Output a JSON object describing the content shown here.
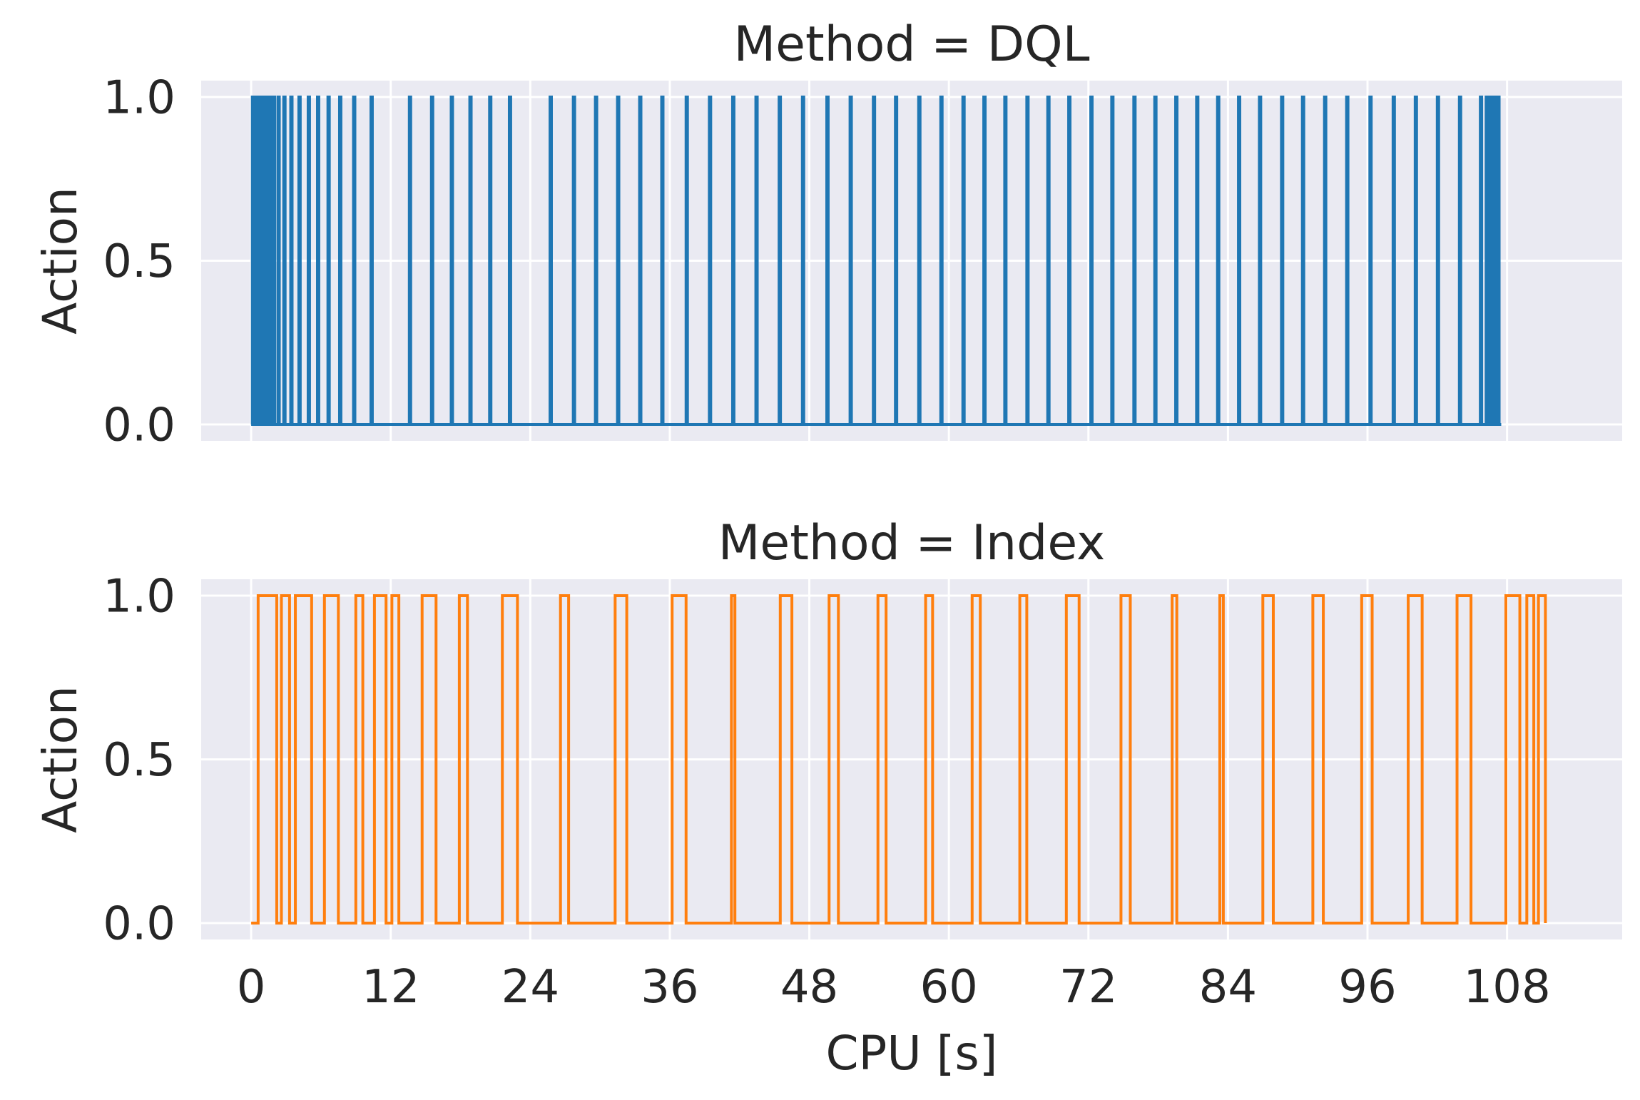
{
  "chart_data": [
    {
      "type": "line",
      "step": "post",
      "title": "Method = DQL",
      "xlabel": "",
      "ylabel": "Action",
      "xlim": [
        -4.3,
        117.9
      ],
      "ylim": [
        -0.05,
        1.05
      ],
      "xticks": [
        0,
        12,
        24,
        36,
        48,
        60,
        72,
        84,
        96,
        108
      ],
      "xtick_labels": [
        "0",
        "12",
        "24",
        "36",
        "48",
        "60",
        "72",
        "84",
        "96",
        "108"
      ],
      "show_xtick_labels": false,
      "yticks": [
        0.0,
        0.5,
        1.0
      ],
      "ytick_labels": [
        "0.0",
        "0.5",
        "1.0"
      ],
      "grid": true,
      "color": "#1f77b4",
      "x_end": 107.5,
      "pulse_width": 0.12,
      "pulse_starts": [
        0.1,
        0.25,
        0.4,
        0.55,
        0.7,
        0.85,
        1.0,
        1.15,
        1.3,
        1.45,
        1.6,
        1.75,
        1.9,
        2.3,
        2.8,
        3.4,
        4.1,
        4.9,
        5.7,
        6.6,
        7.6,
        8.8,
        10.3,
        13.6,
        15.5,
        17.2,
        18.8,
        20.5,
        22.2,
        25.7,
        27.7,
        29.6,
        31.5,
        33.4,
        35.3,
        37.4,
        39.4,
        41.4,
        43.4,
        45.4,
        47.4,
        49.5,
        51.5,
        53.5,
        55.4,
        57.4,
        59.3,
        61.2,
        63.0,
        64.8,
        66.7,
        68.5,
        70.3,
        72.2,
        74.0,
        75.9,
        77.7,
        79.5,
        81.3,
        83.1,
        84.9,
        86.7,
        88.6,
        90.4,
        92.3,
        94.2,
        96.2,
        98.2,
        100.1,
        102.0,
        103.9,
        105.7,
        106.2,
        106.4,
        106.6,
        106.8,
        107.0,
        107.2
      ]
    },
    {
      "type": "line",
      "step": "post",
      "title": "Method = Index",
      "xlabel": "CPU [s]",
      "ylabel": "Action",
      "xlim": [
        -4.3,
        117.9
      ],
      "ylim": [
        -0.05,
        1.05
      ],
      "xticks": [
        0,
        12,
        24,
        36,
        48,
        60,
        72,
        84,
        96,
        108
      ],
      "xtick_labels": [
        "0",
        "12",
        "24",
        "36",
        "48",
        "60",
        "72",
        "84",
        "96",
        "108"
      ],
      "show_xtick_labels": true,
      "yticks": [
        0.0,
        0.5,
        1.0
      ],
      "ytick_labels": [
        "0.0",
        "0.5",
        "1.0"
      ],
      "grid": true,
      "color": "#ff7f0e",
      "x_end": 111.3,
      "pulses": [
        [
          0.6,
          2.2
        ],
        [
          2.6,
          3.3
        ],
        [
          3.8,
          5.2
        ],
        [
          6.3,
          7.5
        ],
        [
          9.0,
          9.6
        ],
        [
          10.6,
          11.6
        ],
        [
          12.1,
          12.7
        ],
        [
          14.7,
          15.9
        ],
        [
          17.9,
          18.6
        ],
        [
          21.6,
          22.9
        ],
        [
          26.6,
          27.3
        ],
        [
          31.3,
          32.3
        ],
        [
          36.2,
          37.4
        ],
        [
          41.3,
          41.6
        ],
        [
          45.5,
          46.5
        ],
        [
          49.7,
          50.5
        ],
        [
          53.9,
          54.6
        ],
        [
          58.0,
          58.6
        ],
        [
          62.0,
          62.7
        ],
        [
          66.1,
          66.7
        ],
        [
          70.1,
          71.2
        ],
        [
          74.8,
          75.6
        ],
        [
          79.2,
          79.6
        ],
        [
          83.3,
          83.6
        ],
        [
          87.0,
          87.9
        ],
        [
          91.3,
          92.2
        ],
        [
          95.5,
          96.4
        ],
        [
          99.5,
          100.7
        ],
        [
          103.7,
          104.9
        ],
        [
          107.9,
          109.1
        ],
        [
          109.7,
          110.3
        ],
        [
          110.7,
          111.3
        ]
      ]
    }
  ]
}
